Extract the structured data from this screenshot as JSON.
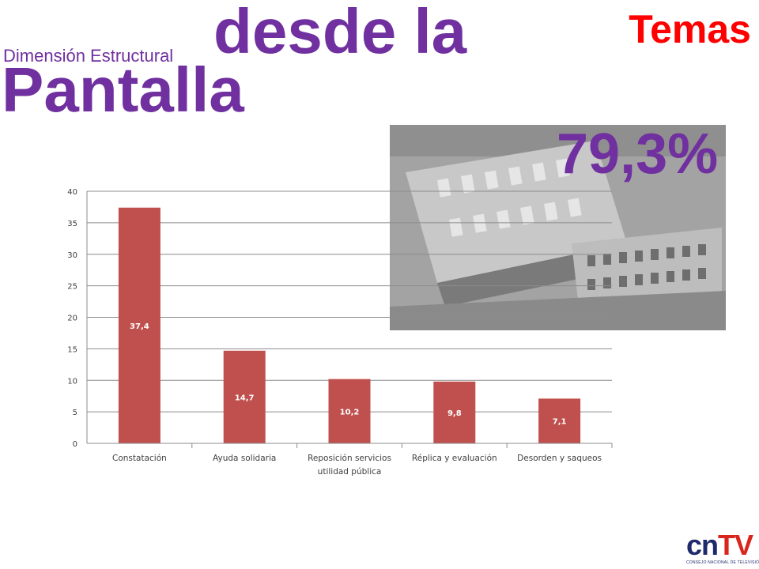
{
  "header": {
    "subtitle": "Dimensión Estructural",
    "title_line1": "desde la",
    "title_line2": "Pantalla",
    "section_label": "Temas"
  },
  "highlight": {
    "percent": "79,3%"
  },
  "colors": {
    "title": "#7030a0",
    "section_label": "#ff0000",
    "bar": "#c0504d",
    "gridline": "#8c8c8c"
  },
  "chart_data": {
    "type": "bar",
    "categories": [
      "Constatación",
      "Ayuda solidaria",
      "Reposición servicios utilidad pública",
      "Réplica y evaluación",
      "Desorden y saqueos"
    ],
    "category_lines": [
      [
        "Constatación"
      ],
      [
        "Ayuda solidaria"
      ],
      [
        "Reposición servicios",
        "utilidad pública"
      ],
      [
        "Réplica y evaluación"
      ],
      [
        "Desorden y saqueos"
      ]
    ],
    "values": [
      37.4,
      14.7,
      10.2,
      9.8,
      7.1
    ],
    "value_labels": [
      "37,4",
      "14,7",
      "10,2",
      "9,8",
      "7,1"
    ],
    "ylim": [
      0,
      40
    ],
    "yticks": [
      "0",
      "5",
      "10",
      "15",
      "20",
      "25",
      "30",
      "35",
      "40"
    ],
    "grid": true,
    "legend": "none"
  },
  "logo": {
    "cn": "cn",
    "tv": "TV",
    "subtext": "CONSEJO NACIONAL DE TELEVISIÓN"
  }
}
